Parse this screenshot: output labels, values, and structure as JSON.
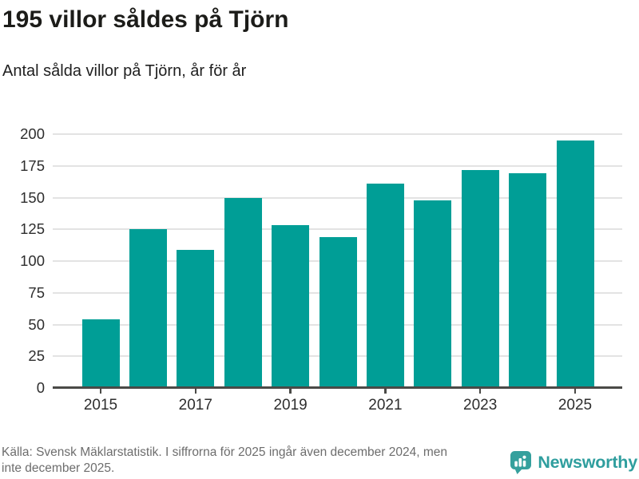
{
  "header": {
    "title": "195 villor såldes på Tjörn",
    "subtitle": "Antal sålda villor på Tjörn, år för år"
  },
  "chart_data": {
    "type": "bar",
    "categories": [
      "2015",
      "2016",
      "2017",
      "2018",
      "2019",
      "2020",
      "2021",
      "2022",
      "2023",
      "2024",
      "2025"
    ],
    "values": [
      54,
      125,
      109,
      150,
      128,
      119,
      161,
      148,
      172,
      169,
      195
    ],
    "title": "195 villor såldes på Tjörn",
    "subtitle": "Antal sålda villor på Tjörn, år för år",
    "xlabel": "",
    "ylabel": "",
    "ylim": [
      0,
      200
    ],
    "yticks": [
      0,
      25,
      50,
      75,
      100,
      125,
      150,
      175,
      200
    ],
    "xtick_labels": [
      "2015",
      "2017",
      "2019",
      "2021",
      "2023",
      "2025"
    ],
    "grid": true,
    "legend": false
  },
  "footer": {
    "source_line1": "Källa: Svensk Mäklarstatistik. I siffrorna för 2025 ingår även december 2024, men",
    "source_line2": "inte december 2025.",
    "brand_name": "Newsworthy"
  },
  "colors": {
    "bar": "#009e96",
    "grid": "#e3e3e3",
    "axis": "#4a4a47",
    "title_text": "#1c1c19",
    "tick_text": "#2e2e2e",
    "footer_text": "#6d6d6d",
    "brand_teal": "#35a09d",
    "brand_text": "#2f9e9e"
  }
}
